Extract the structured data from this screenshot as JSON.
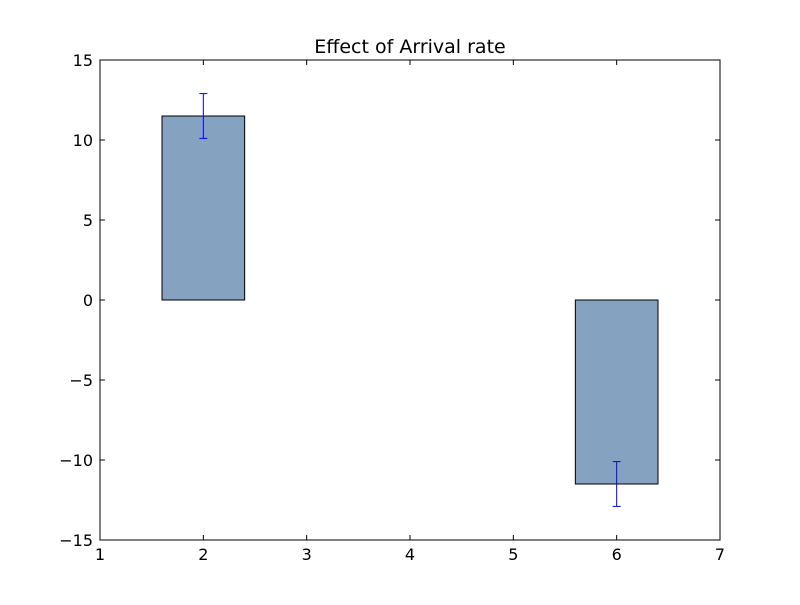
{
  "chart_data": {
    "type": "bar",
    "title": "Effect of Arrival rate",
    "xlabel": "",
    "ylabel": "",
    "xlim": [
      1,
      7
    ],
    "ylim": [
      -15,
      15
    ],
    "xticks": [
      1,
      2,
      3,
      4,
      5,
      6,
      7
    ],
    "yticks": [
      -15,
      -10,
      -5,
      0,
      5,
      10,
      15
    ],
    "xtick_labels": [
      "1",
      "2",
      "3",
      "4",
      "5",
      "6",
      "7"
    ],
    "ytick_labels": [
      "−15",
      "−10",
      "−5",
      "0",
      "5",
      "10",
      "15"
    ],
    "bar_width": 0.8,
    "bars": [
      {
        "x": 2,
        "value": 11.5,
        "err_low": 10.1,
        "err_high": 12.9
      },
      {
        "x": 6,
        "value": -11.5,
        "err_low": -12.9,
        "err_high": -10.1
      }
    ],
    "grid": false,
    "colors": {
      "bar": "#85a3c0",
      "edge": "#000000",
      "error": "#0000ff"
    }
  }
}
